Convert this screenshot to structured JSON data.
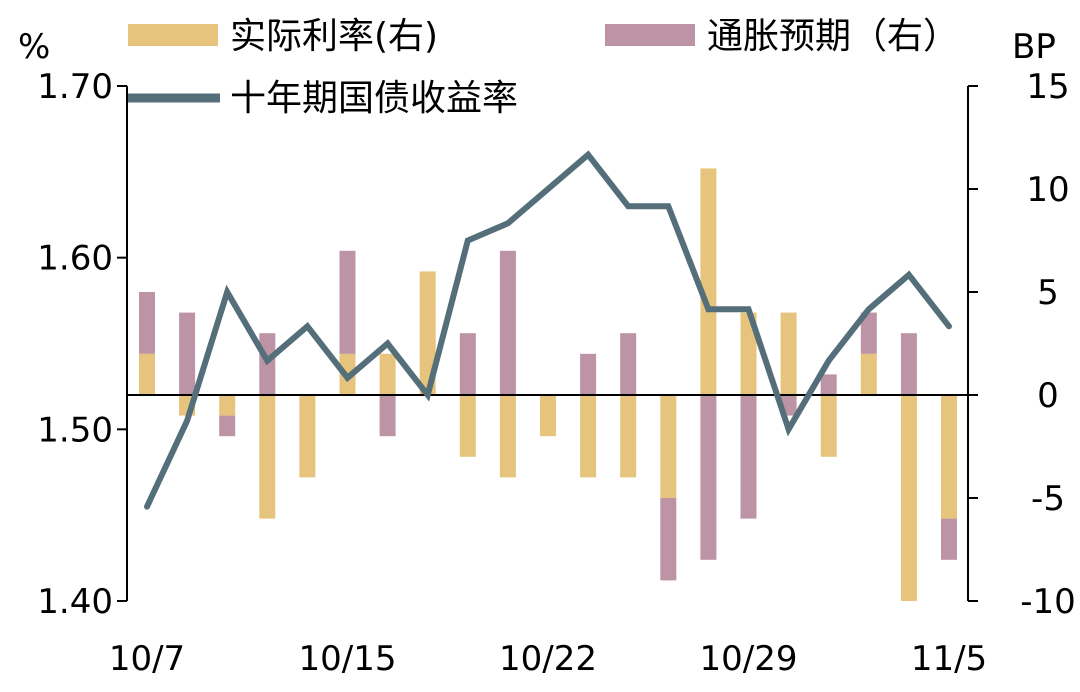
{
  "chart_data": {
    "type": "bar",
    "title": "",
    "left_axis": {
      "unit": "%",
      "ylim": [
        1.4,
        1.7
      ],
      "ticks": [
        "1.70",
        "1.60",
        "1.50",
        "1.40"
      ]
    },
    "right_axis": {
      "unit": "BP",
      "ylim": [
        -10,
        15
      ],
      "ticks": [
        "15",
        "10",
        "5",
        "0",
        "-5",
        "-10"
      ]
    },
    "x_tick_labels": [
      {
        "label": "10/7",
        "index": 0
      },
      {
        "label": "10/15",
        "index": 5
      },
      {
        "label": "10/22",
        "index": 10
      },
      {
        "label": "10/29",
        "index": 15
      },
      {
        "label": "11/5",
        "index": 20
      }
    ],
    "legend": {
      "real_rate": "实际利率(右)",
      "inflation_expectation": "通胀预期（右）",
      "yield": "十年期国债收益率"
    },
    "colors": {
      "real_rate": "#E6C47D",
      "inflation_expectation": "#BC94A5",
      "yield": "#546E7A",
      "axis": "#000000"
    },
    "series": [
      {
        "name": "实际利率(右)",
        "axis": "right",
        "type": "bar",
        "values": [
          2,
          -1,
          -1,
          -6,
          -4,
          2,
          2,
          6,
          -3,
          -4,
          -2,
          -4,
          -4,
          -5,
          11,
          4,
          4,
          -3,
          2,
          -10,
          -6
        ]
      },
      {
        "name": "通胀预期（右）",
        "axis": "right",
        "type": "bar",
        "values": [
          3,
          4,
          -1,
          3,
          0,
          5,
          -2,
          0,
          3,
          7,
          0,
          2,
          3,
          -4,
          -8,
          -6,
          -1,
          1,
          2,
          3,
          -2
        ]
      },
      {
        "name": "十年期国债收益率",
        "axis": "left",
        "type": "line",
        "values": [
          1.455,
          1.505,
          1.58,
          1.54,
          1.56,
          1.53,
          1.55,
          1.52,
          1.61,
          1.62,
          1.64,
          1.66,
          1.63,
          1.63,
          1.57,
          1.57,
          1.5,
          1.54,
          1.57,
          1.59,
          1.56
        ]
      }
    ]
  }
}
